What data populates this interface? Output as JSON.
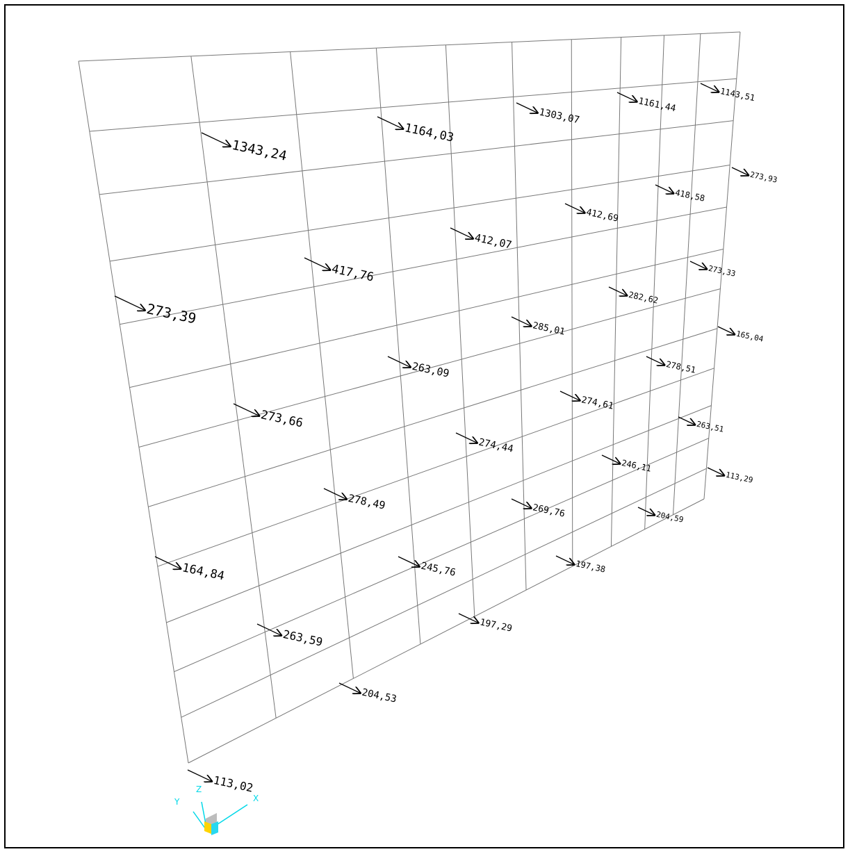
{
  "viewport": {
    "background": "#ffffff",
    "grid_color": "#777777",
    "arrow_color": "#000000"
  },
  "grid": {
    "columns": 10,
    "rows": 12
  },
  "load_labels": [
    "1343,24",
    "1164,03",
    "1303,07",
    "1161,44",
    "1143,51",
    "273,93",
    "418,58",
    "412,69",
    "412,07",
    "417,76",
    "273,33",
    "282,62",
    "285,01",
    "273,39",
    "165,04",
    "278,51",
    "263,09",
    "274,61",
    "263,51",
    "273,66",
    "274,44",
    "246,11",
    "113,29",
    "278,49",
    "269,76",
    "204,59",
    "164,84",
    "245,76",
    "197,38",
    "197,29",
    "263,59",
    "204,53",
    "113,02"
  ],
  "axes": {
    "x_label": "X",
    "y_label": "Y",
    "z_label": "Z",
    "color": "#00d8e8"
  }
}
